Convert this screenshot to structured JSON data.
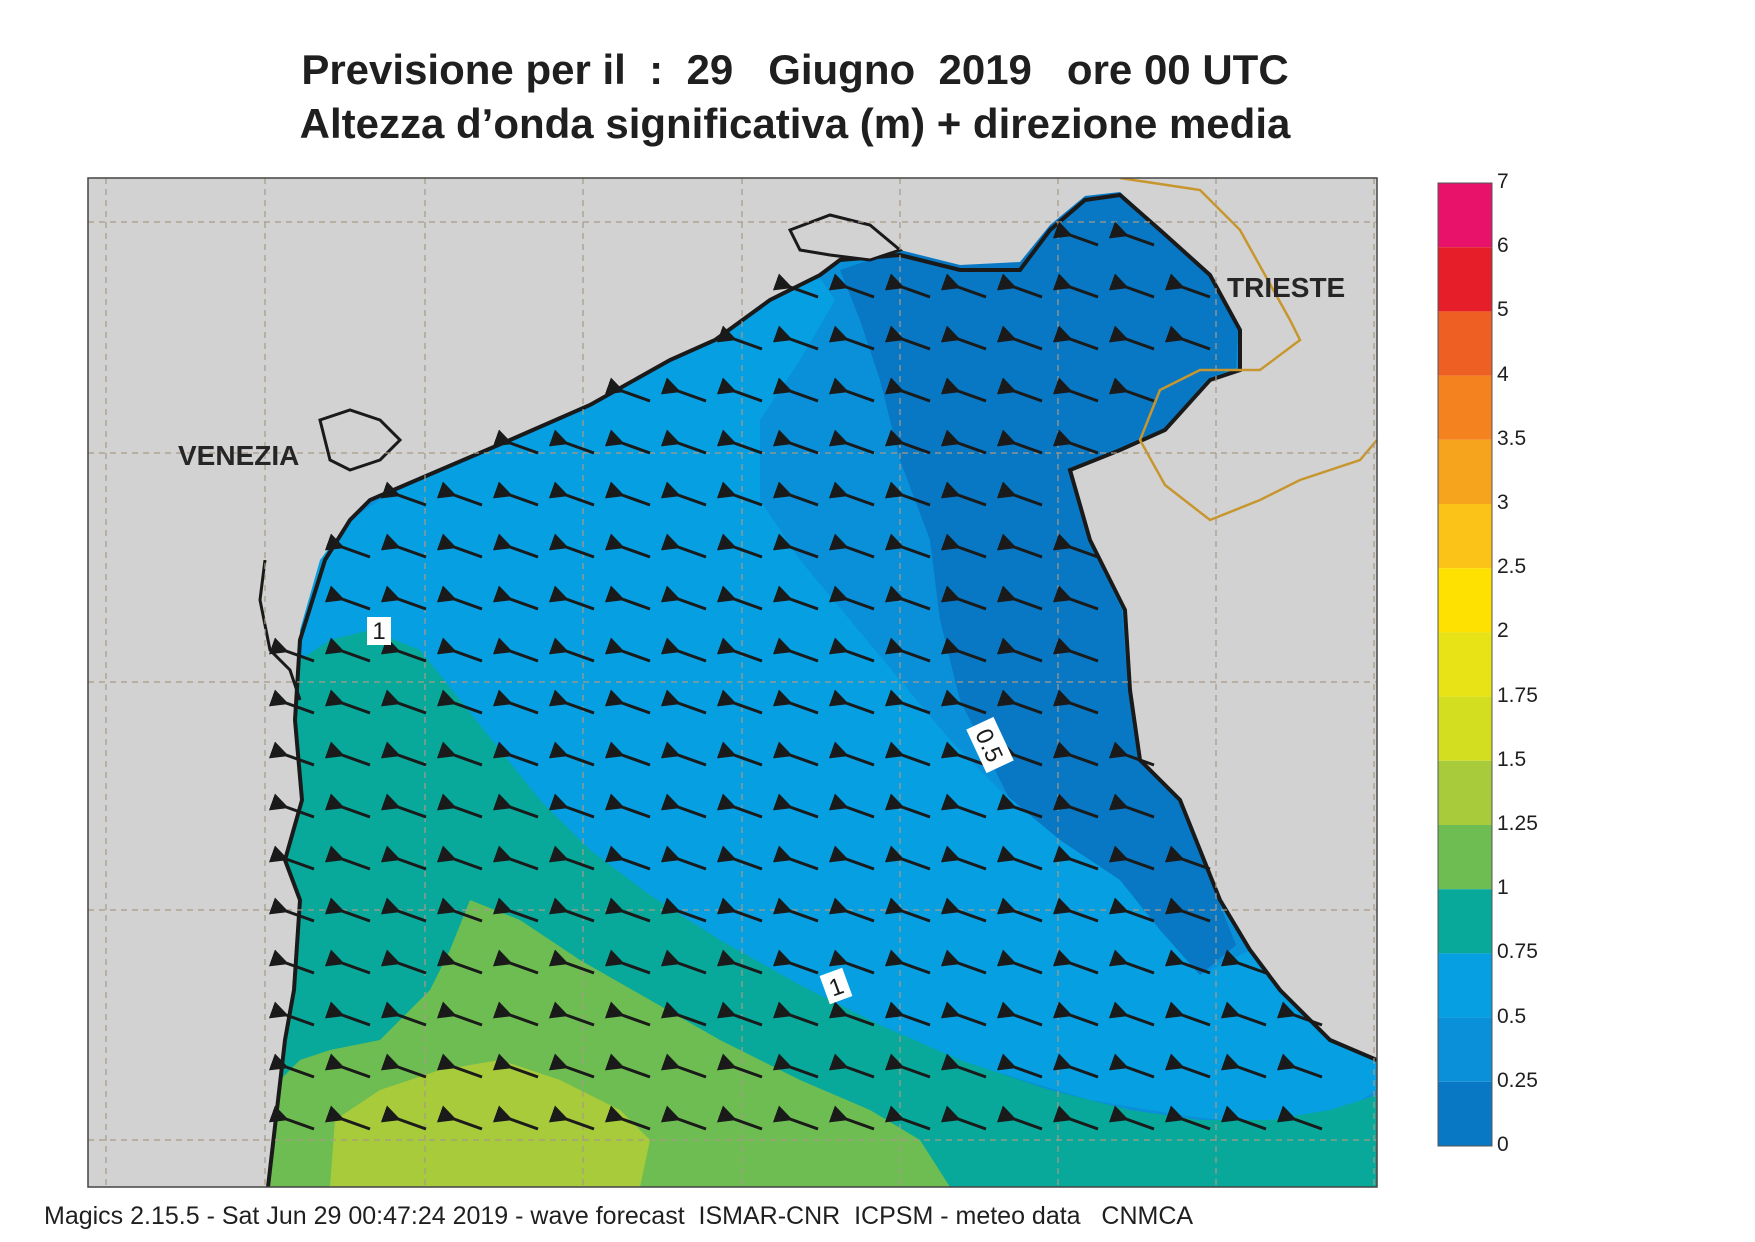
{
  "title": {
    "line1": "Previsione per il  :  29   Giugno  2019   ore 00 UTC",
    "line2": "Altezza d’onda significativa (m) + direzione media"
  },
  "places": {
    "venezia": "VENEZIA",
    "trieste": "TRIESTE"
  },
  "contour_labels": {
    "one_west": "1",
    "half": "0.5",
    "one_mid": "1"
  },
  "footer": "Magics 2.15.5 - Sat Jun 29 00:47:24 2019 - wave forecast  ISMAR-CNR  ICPSM - meteo data   CNMCA",
  "colors": {
    "land": "#d2d2d2",
    "coast": "#1a1a1a",
    "border": "#c8962e",
    "grid": "#a89a86"
  },
  "legend": {
    "title": "Altezza d’onda significativa (m)",
    "entries": [
      {
        "label": "7",
        "color": "#e8126b"
      },
      {
        "label": "6",
        "color": "#e51e2a"
      },
      {
        "label": "5",
        "color": "#ee5f24"
      },
      {
        "label": "4",
        "color": "#f3821f"
      },
      {
        "label": "3.5",
        "color": "#f6a41e"
      },
      {
        "label": "3",
        "color": "#fbc318"
      },
      {
        "label": "2.5",
        "color": "#ffe101"
      },
      {
        "label": "2",
        "color": "#e7e316"
      },
      {
        "label": "1.75",
        "color": "#d4de21"
      },
      {
        "label": "1.5",
        "color": "#a8cb3b"
      },
      {
        "label": "1.25",
        "color": "#6dbd52"
      },
      {
        "label": "1",
        "color": "#08a89b"
      },
      {
        "label": "0.75",
        "color": "#069fe2"
      },
      {
        "label": "0.5",
        "color": "#0990d8"
      },
      {
        "label": "0.25",
        "color": "#0877c4"
      },
      {
        "label": "0",
        "color": "#0765b6"
      }
    ]
  },
  "wave_direction": "verso ovest-nord-ovest"
}
